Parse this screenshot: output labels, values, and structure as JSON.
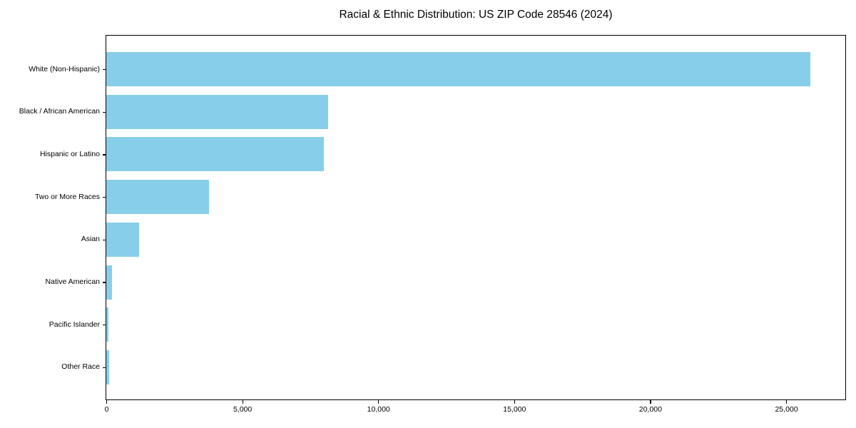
{
  "chart_data": {
    "type": "bar",
    "orientation": "horizontal",
    "title": "Racial & Ethnic Distribution: US ZIP Code 28546 (2024)",
    "categories": [
      "White (Non-Hispanic)",
      "Black / African American",
      "Hispanic or Latino",
      "Two or More Races",
      "Asian",
      "Native American",
      "Pacific Islander",
      "Other Race"
    ],
    "values": [
      25900,
      8150,
      8000,
      3770,
      1200,
      210,
      90,
      100
    ],
    "xlabel": "",
    "ylabel": "",
    "xlim": [
      0,
      27150
    ],
    "xticks": [
      0,
      5000,
      10000,
      15000,
      20000,
      25000
    ],
    "xtick_labels": [
      "0",
      "5,000",
      "10,000",
      "15,000",
      "20,000",
      "25,000"
    ],
    "bar_color": "#87CEEB",
    "grid": false,
    "legend": "none",
    "frame": true
  }
}
